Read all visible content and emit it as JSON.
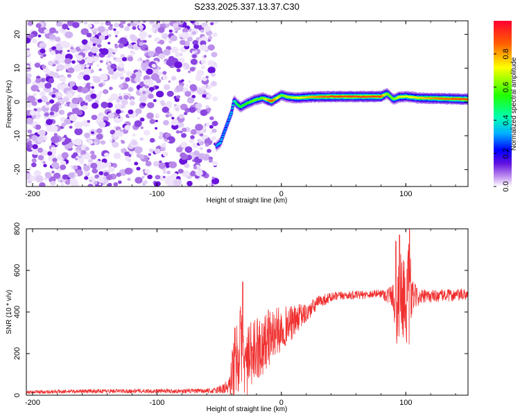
{
  "title": "S233.2025.337.13.37.C30",
  "chart_data": [
    {
      "type": "heatmap",
      "title": "S233.2025.337.13.37.C30",
      "xlabel": "Height of straight line (km)",
      "ylabel": "Frequency (Hz)",
      "xlim": [
        -205,
        150
      ],
      "ylim": [
        -25,
        24
      ],
      "xticks": [
        -200,
        -100,
        0,
        100
      ],
      "yticks": [
        -20,
        -10,
        0,
        10,
        20
      ],
      "noise_region_x": [
        -205,
        -53
      ],
      "colorbar": {
        "label": "Normalized spectral amplitude",
        "range": [
          0,
          1
        ],
        "ticks": [
          "0.0",
          "0.2",
          "0.4",
          "0.6",
          "0.8"
        ],
        "colormap": [
          "#e8d8f5",
          "#a060e0",
          "#4b00e0",
          "#0000ff",
          "#00d0ff",
          "#00ff80",
          "#40ff00",
          "#ffff00",
          "#ff8000",
          "#ff0000"
        ]
      },
      "ridge": {
        "x": [
          -52,
          -49,
          -46,
          -43,
          -40,
          -38,
          -36,
          -33,
          -28,
          -22,
          -15,
          -8,
          0,
          5,
          12,
          25,
          40,
          60,
          80,
          85,
          90,
          95,
          100,
          110,
          130,
          150
        ],
        "freq": [
          -13,
          -12,
          -9,
          -6,
          -3,
          0.5,
          -0.5,
          -1.5,
          -0.5,
          0.5,
          1.2,
          0.2,
          2.0,
          1.5,
          1.2,
          1.5,
          1.6,
          1.6,
          1.6,
          2.5,
          0.8,
          1.5,
          1.6,
          1.2,
          1.0,
          0.8
        ],
        "amp": [
          0.3,
          0.35,
          0.3,
          0.3,
          0.35,
          0.4,
          0.5,
          0.5,
          0.55,
          0.6,
          0.6,
          0.9,
          0.6,
          0.65,
          0.7,
          0.8,
          0.9,
          0.9,
          0.9,
          0.6,
          0.6,
          0.7,
          0.7,
          0.75,
          0.85,
          0.9
        ]
      }
    },
    {
      "type": "line",
      "xlabel": "Height of straight line (km)",
      "ylabel": "SNR (10 * v/v)",
      "xlim": [
        -205,
        150
      ],
      "ylim": [
        0,
        800
      ],
      "xticks": [
        -200,
        -100,
        0,
        100
      ],
      "yticks": [
        0,
        200,
        400,
        600,
        800
      ],
      "color": "#f03030",
      "series": [
        {
          "name": "SNR",
          "x": [
            -205,
            -150,
            -100,
            -55,
            -42,
            -38,
            -35,
            -32,
            -30,
            -25,
            -20,
            -15,
            -10,
            -5,
            0,
            5,
            10,
            15,
            20,
            25,
            30,
            40,
            50,
            60,
            70,
            80,
            85,
            90,
            92,
            95,
            100,
            103,
            105,
            110,
            120,
            130,
            140,
            150
          ],
          "mean": [
            15,
            20,
            20,
            20,
            40,
            150,
            200,
            250,
            150,
            170,
            230,
            240,
            280,
            300,
            320,
            340,
            350,
            380,
            390,
            420,
            450,
            470,
            480,
            480,
            485,
            490,
            480,
            480,
            350,
            500,
            460,
            450,
            480,
            470,
            475,
            480,
            480,
            485
          ],
          "spread": [
            8,
            10,
            10,
            12,
            40,
            180,
            200,
            200,
            150,
            180,
            150,
            150,
            140,
            120,
            110,
            90,
            80,
            60,
            50,
            40,
            30,
            25,
            20,
            20,
            20,
            20,
            40,
            60,
            250,
            200,
            200,
            300,
            80,
            40,
            30,
            30,
            30,
            30
          ]
        }
      ],
      "peaks": [
        {
          "x": -31,
          "value": 545
        },
        {
          "x": 92,
          "value": 740
        },
        {
          "x": 95,
          "value": 770
        },
        {
          "x": 103,
          "value": 800
        }
      ]
    }
  ]
}
